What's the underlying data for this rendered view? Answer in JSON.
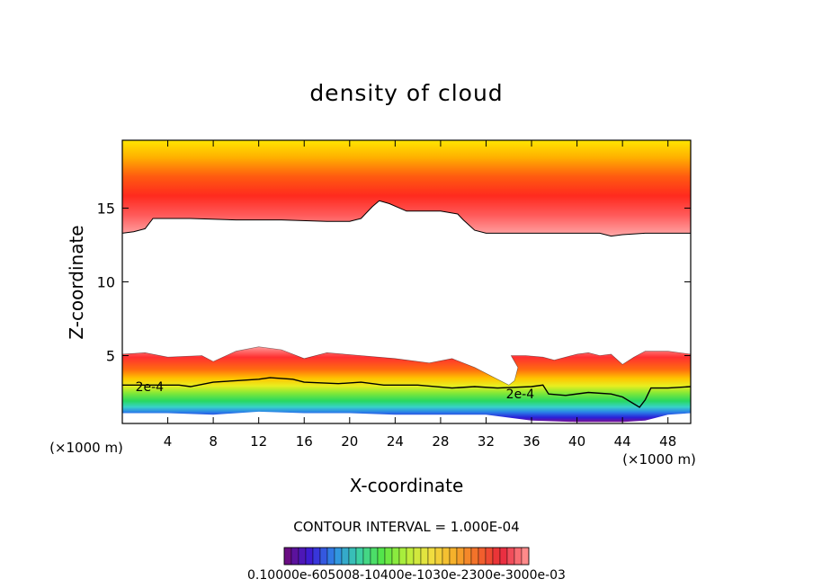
{
  "chart_data": {
    "type": "heatmap",
    "title": "density of cloud",
    "xlabel": "X-coordinate",
    "ylabel": "Z-coordinate",
    "x_unit": "(×1000 m)",
    "x_unit_right": "(×1000 m)",
    "xlim": [
      0,
      50
    ],
    "ylim": [
      0.4,
      19.6
    ],
    "xticks": [
      4,
      8,
      12,
      16,
      20,
      24,
      28,
      32,
      36,
      40,
      44,
      48
    ],
    "xtick_labels": [
      "4",
      "8",
      "12",
      "16",
      "20",
      "24",
      "28",
      "32",
      "36",
      "40",
      "44",
      "48"
    ],
    "yticks": [
      5,
      10,
      15
    ],
    "ytick_labels": [
      "5",
      "10",
      "15"
    ],
    "contour_interval_text": "CONTOUR INTERVAL = 1.000E-04",
    "contour_labels": [
      {
        "text": "2e-4",
        "x": 2.4,
        "z": 2.9
      },
      {
        "text": "2e-4",
        "x": 35.0,
        "z": 2.4
      }
    ],
    "colorbar": {
      "labels_text": "0.10000e-605008-10400e-1030e-2300e-3000e-03",
      "colors": [
        "#6a0d83",
        "#3a1ed8",
        "#2f8fe6",
        "#3ccfa5",
        "#55e645",
        "#b7ef3a",
        "#f0e040",
        "#f6b02a",
        "#f36b2a",
        "#e8263a",
        "#ff8a8a"
      ]
    },
    "regions": {
      "upper_cloud": {
        "top_z": 19.6,
        "color_top": "#ffe600",
        "color_mid": "#ff2a1e",
        "color_bottom": "#ff9a9a",
        "base_profile": [
          [
            0,
            13.3
          ],
          [
            1,
            13.4
          ],
          [
            2,
            13.6
          ],
          [
            2.7,
            14.3
          ],
          [
            6,
            14.3
          ],
          [
            10,
            14.2
          ],
          [
            14,
            14.2
          ],
          [
            18,
            14.1
          ],
          [
            20,
            14.1
          ],
          [
            21,
            14.3
          ],
          [
            22,
            15.1
          ],
          [
            22.6,
            15.5
          ],
          [
            23.5,
            15.3
          ],
          [
            25,
            14.8
          ],
          [
            28,
            14.8
          ],
          [
            29.5,
            14.6
          ],
          [
            30,
            14.2
          ],
          [
            31,
            13.5
          ],
          [
            32,
            13.3
          ],
          [
            36,
            13.3
          ],
          [
            42,
            13.3
          ],
          [
            43,
            13.1
          ],
          [
            44,
            13.2
          ],
          [
            46,
            13.3
          ],
          [
            50,
            13.3
          ]
        ]
      },
      "lower_cloud": {
        "top_profile": [
          [
            0,
            5.1
          ],
          [
            2,
            5.2
          ],
          [
            4,
            4.9
          ],
          [
            7,
            5.0
          ],
          [
            8,
            4.6
          ],
          [
            10,
            5.3
          ],
          [
            12,
            5.6
          ],
          [
            14,
            5.4
          ],
          [
            16,
            4.8
          ],
          [
            18,
            5.2
          ],
          [
            21,
            5.0
          ],
          [
            24,
            4.8
          ],
          [
            27,
            4.5
          ],
          [
            29,
            4.8
          ],
          [
            31,
            4.2
          ],
          [
            33,
            3.4
          ],
          [
            34,
            3.0
          ],
          [
            34.5,
            3.3
          ],
          [
            34.8,
            4.2
          ],
          [
            34.2,
            5.0
          ],
          [
            35.5,
            5.0
          ],
          [
            37,
            4.9
          ],
          [
            38,
            4.7
          ],
          [
            39,
            4.9
          ],
          [
            40,
            5.1
          ],
          [
            41,
            5.2
          ],
          [
            42,
            5.0
          ],
          [
            43,
            5.1
          ],
          [
            44,
            4.4
          ],
          [
            45,
            4.9
          ],
          [
            46,
            5.3
          ],
          [
            48,
            5.3
          ],
          [
            50,
            5.1
          ]
        ],
        "contour_2e4": [
          [
            0,
            3.0
          ],
          [
            3,
            3.0
          ],
          [
            5,
            3.0
          ],
          [
            6,
            2.9
          ],
          [
            8,
            3.2
          ],
          [
            10,
            3.3
          ],
          [
            12,
            3.4
          ],
          [
            13,
            3.5
          ],
          [
            15,
            3.4
          ],
          [
            16,
            3.2
          ],
          [
            19,
            3.1
          ],
          [
            21,
            3.2
          ],
          [
            23,
            3.0
          ],
          [
            26,
            3.0
          ],
          [
            29,
            2.8
          ],
          [
            31,
            2.9
          ],
          [
            33,
            2.8
          ],
          [
            36,
            2.9
          ],
          [
            37,
            3.0
          ],
          [
            37.5,
            2.4
          ],
          [
            39,
            2.3
          ],
          [
            41,
            2.5
          ],
          [
            43,
            2.4
          ],
          [
            44,
            2.2
          ],
          [
            45.5,
            1.5
          ],
          [
            46,
            2.0
          ],
          [
            46.5,
            2.8
          ],
          [
            48,
            2.8
          ],
          [
            50,
            2.9
          ]
        ],
        "bottom_profile": [
          [
            0,
            1.1
          ],
          [
            4,
            1.1
          ],
          [
            8,
            1.0
          ],
          [
            12,
            1.2
          ],
          [
            16,
            1.1
          ],
          [
            20,
            1.1
          ],
          [
            24,
            1.0
          ],
          [
            28,
            1.0
          ],
          [
            32,
            1.0
          ],
          [
            36,
            0.6
          ],
          [
            40,
            0.5
          ],
          [
            44,
            0.5
          ],
          [
            46,
            0.6
          ],
          [
            48,
            1.0
          ],
          [
            50,
            1.1
          ]
        ]
      }
    }
  }
}
